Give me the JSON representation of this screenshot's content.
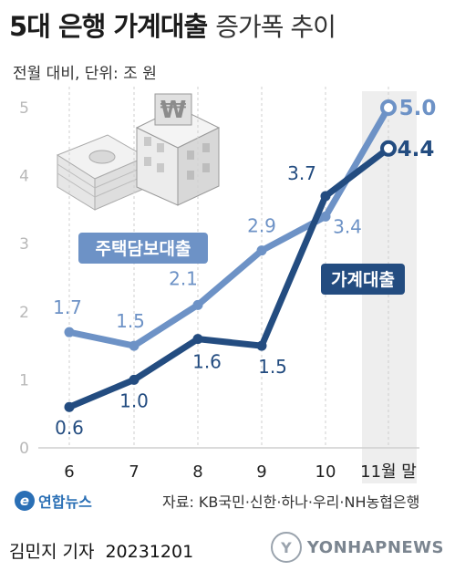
{
  "header": {
    "title_main": "5대 은행 가계대출",
    "title_sub": "증가폭 추이",
    "unit_note": "전월 대비, 단위: 조 원"
  },
  "chart_data": {
    "type": "line",
    "categories": [
      "6",
      "7",
      "8",
      "9",
      "10",
      "11월 말"
    ],
    "ylim": [
      0,
      5
    ],
    "yticks": [
      0,
      1,
      2,
      3,
      4,
      5
    ],
    "series": [
      {
        "name": "주택담보대출",
        "values": [
          1.7,
          1.5,
          2.1,
          2.9,
          3.4,
          5.0
        ],
        "labels": [
          "1.7",
          "1.5",
          "2.1",
          "2.9",
          "3.4",
          "5.0"
        ],
        "color": "#6d92c6"
      },
      {
        "name": "가계대출",
        "values": [
          0.6,
          1.0,
          1.6,
          1.5,
          3.7,
          4.4
        ],
        "labels": [
          "0.6",
          "1.0",
          "1.6",
          "1.5",
          "3.7",
          "4.4"
        ],
        "color": "#234c80"
      }
    ],
    "grid": "vertical-dashed"
  },
  "footer": {
    "logo_text": "연합뉴스",
    "source": "자료: KB국민·신한·하나·우리·NH농협은행",
    "reporter": "김민지 기자",
    "date": "20231201",
    "watermark": "YONHAPNEWS"
  },
  "colors": {
    "mortgage": "#6d92c6",
    "household": "#234c80",
    "last_band": "#eeeeee",
    "grid": "#cfcfcf"
  },
  "icons": [
    "stacked-cash-icon",
    "bank-building-icon"
  ]
}
